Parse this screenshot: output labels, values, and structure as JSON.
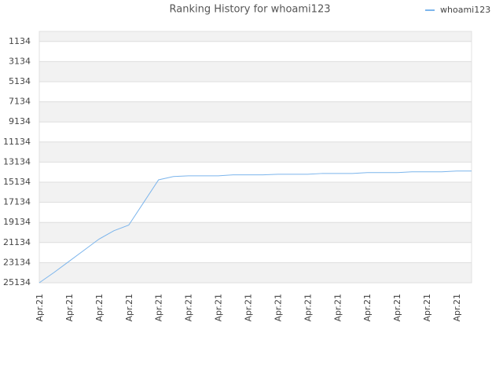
{
  "chart_data": {
    "type": "line",
    "title": "Ranking History for whoami123",
    "categories": [
      "Apr.21",
      null,
      "Apr.21",
      null,
      "Apr.21",
      null,
      "Apr.21",
      null,
      "Apr.21",
      null,
      "Apr.21",
      null,
      "Apr.21",
      null,
      "Apr.21",
      null,
      "Apr.21",
      null,
      "Apr.21",
      null,
      "Apr.21",
      null,
      "Apr.21",
      null,
      "Apr.21",
      null,
      "Apr.21",
      null,
      "Apr.21",
      null
    ],
    "series": [
      {
        "name": "whoami123",
        "color": "#7cb5ec",
        "values": [
          25134,
          24100,
          23000,
          21900,
          20800,
          19960,
          19400,
          17150,
          14900,
          14570,
          14500,
          14500,
          14500,
          14400,
          14400,
          14400,
          14340,
          14340,
          14340,
          14260,
          14260,
          14260,
          14180,
          14180,
          14180,
          14100,
          14100,
          14100,
          14020,
          14020
        ]
      }
    ],
    "ylim": [
      25134,
      134
    ],
    "yticks": [
      1134,
      3134,
      5134,
      7134,
      9134,
      11134,
      13134,
      15134,
      17134,
      19134,
      21134,
      23134,
      25134
    ],
    "grid": true,
    "legend": "top-right"
  }
}
